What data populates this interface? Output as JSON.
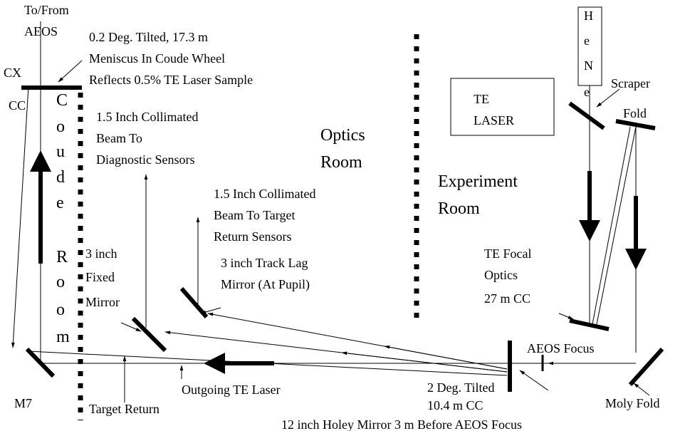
{
  "to_from": [
    "To/From",
    "AEOS"
  ],
  "meniscus": [
    "0.2 Deg. Tilted, 17.3 m",
    "Meniscus In Coude Wheel",
    "Reflects 0.5% TE Laser Sample"
  ],
  "cx": "CX",
  "cc": "CC",
  "coude_room": [
    "C",
    "o",
    "u",
    "d",
    "e",
    "R",
    "o",
    "o",
    "m"
  ],
  "diagnostic": [
    "1.5 Inch Collimated",
    "Beam To",
    "Diagnostic Sensors"
  ],
  "optics_room": [
    "Optics",
    "Room"
  ],
  "experiment_room": [
    "Experiment",
    "Room"
  ],
  "te_laser": [
    "TE",
    "LASER"
  ],
  "hene": [
    "H",
    "e",
    "N",
    "e"
  ],
  "scraper": "Scraper",
  "fold": "Fold",
  "target_sensors": [
    "1.5 Inch Collimated",
    "Beam To Target",
    "Return Sensors"
  ],
  "fixed_mirror": [
    "3 inch",
    "Fixed",
    "Mirror"
  ],
  "track_lag": [
    "3 inch Track Lag",
    "Mirror (At Pupil)"
  ],
  "te_focal": [
    "TE Focal",
    "Optics",
    "27 m CC"
  ],
  "aeos_focus": "AEOS Focus",
  "holey": [
    "2 Deg. Tilted",
    "10.4 m CC",
    "12 inch Holey Mirror 3 m Before AEOS Focus"
  ],
  "m7": "M7",
  "target_return": "Target Return",
  "outgoing": "Outgoing TE Laser",
  "moly_fold": "Moly Fold"
}
